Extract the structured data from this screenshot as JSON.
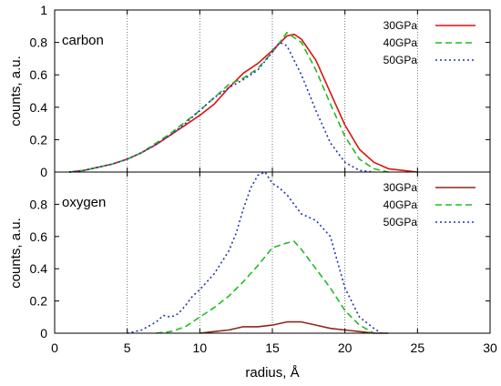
{
  "chart_data": [
    {
      "type": "line",
      "panel_label": "carbon",
      "xlabel": "",
      "ylabel": "counts, a.u.",
      "xlim": [
        0,
        30
      ],
      "ylim": [
        0,
        1
      ],
      "xticks": [
        0,
        5,
        10,
        15,
        20,
        25,
        30
      ],
      "xtick_labels": [
        "",
        "",
        "",
        "",
        "",
        "",
        ""
      ],
      "yticks": [
        0,
        0.2,
        0.4,
        0.6,
        0.8,
        1
      ],
      "ytick_labels": [
        "0",
        "0.2",
        "0.4",
        "0.6",
        "0.8",
        "1"
      ],
      "vertical_gridlines": [
        5,
        10,
        15,
        20,
        25
      ],
      "legend_position": "top-right",
      "series": [
        {
          "name": "30GPa",
          "color": "#dd1111",
          "dash": "solid",
          "x": [
            1,
            2,
            3,
            4,
            5,
            6,
            7,
            8,
            9,
            10,
            11,
            12,
            13,
            14,
            15,
            16,
            16.5,
            17,
            18,
            19,
            20,
            21,
            22,
            23,
            24,
            25
          ],
          "y": [
            0.0,
            0.01,
            0.03,
            0.05,
            0.08,
            0.12,
            0.17,
            0.23,
            0.29,
            0.35,
            0.42,
            0.52,
            0.61,
            0.67,
            0.75,
            0.84,
            0.85,
            0.82,
            0.69,
            0.49,
            0.29,
            0.14,
            0.06,
            0.02,
            0.01,
            0.0
          ]
        },
        {
          "name": "40GPa",
          "color": "#22bb22",
          "dash": "dashed",
          "x": [
            1,
            2,
            3,
            4,
            5,
            6,
            7,
            8,
            9,
            10,
            11,
            12,
            13,
            14,
            15,
            15.5,
            16,
            17,
            18,
            19,
            20,
            21,
            22,
            23
          ],
          "y": [
            0.0,
            0.01,
            0.03,
            0.05,
            0.08,
            0.12,
            0.18,
            0.24,
            0.31,
            0.38,
            0.46,
            0.54,
            0.58,
            0.64,
            0.74,
            0.8,
            0.86,
            0.8,
            0.63,
            0.42,
            0.22,
            0.08,
            0.02,
            0.0
          ]
        },
        {
          "name": "50GPa",
          "color": "#2233bb",
          "dash": "dotted",
          "x": [
            1,
            2,
            3,
            4,
            5,
            6,
            7,
            8,
            9,
            10,
            11,
            12,
            13,
            14,
            15,
            15.5,
            16,
            17,
            18,
            19,
            20,
            21,
            22
          ],
          "y": [
            0.0,
            0.01,
            0.03,
            0.05,
            0.08,
            0.12,
            0.17,
            0.23,
            0.3,
            0.38,
            0.46,
            0.52,
            0.57,
            0.63,
            0.74,
            0.8,
            0.78,
            0.6,
            0.38,
            0.18,
            0.06,
            0.01,
            0.0
          ]
        }
      ]
    },
    {
      "type": "line",
      "panel_label": "oxygen",
      "xlabel": "radius, Å",
      "ylabel": "counts, a.u.",
      "xlim": [
        0,
        30
      ],
      "ylim": [
        0,
        1
      ],
      "xticks": [
        0,
        5,
        10,
        15,
        20,
        25,
        30
      ],
      "xtick_labels": [
        "0",
        "5",
        "10",
        "15",
        "20",
        "25",
        "30"
      ],
      "yticks": [
        0,
        0.2,
        0.4,
        0.6,
        0.8
      ],
      "ytick_labels": [
        "0",
        "0.2",
        "0.4",
        "0.6",
        "0.8"
      ],
      "vertical_gridlines": [
        5,
        10,
        15,
        20,
        25
      ],
      "legend_position": "top-right",
      "series": [
        {
          "name": "30GPa",
          "color": "#8b2a1a",
          "dash": "solid",
          "x": [
            10,
            11,
            12,
            13,
            14,
            15,
            16,
            17,
            18,
            19,
            20,
            21,
            22,
            23
          ],
          "y": [
            0.0,
            0.01,
            0.02,
            0.04,
            0.04,
            0.05,
            0.07,
            0.07,
            0.05,
            0.03,
            0.02,
            0.01,
            0.0,
            0.0
          ]
        },
        {
          "name": "40GPa",
          "color": "#22bb22",
          "dash": "dashed",
          "x": [
            7,
            8,
            9,
            10,
            11,
            12,
            13,
            14,
            15,
            16,
            16.5,
            17,
            18,
            19,
            20,
            21,
            22
          ],
          "y": [
            0.0,
            0.01,
            0.04,
            0.1,
            0.16,
            0.23,
            0.32,
            0.42,
            0.53,
            0.56,
            0.57,
            0.52,
            0.4,
            0.28,
            0.14,
            0.05,
            0.0
          ]
        },
        {
          "name": "50GPa",
          "color": "#2233bb",
          "dash": "dotted",
          "x": [
            5,
            6,
            7,
            7.5,
            8,
            8.5,
            9,
            9.5,
            10,
            11,
            12,
            12.5,
            13,
            13.5,
            14,
            14.5,
            15,
            15.5,
            16,
            16.5,
            17,
            18,
            19,
            20,
            21,
            22,
            22.5
          ],
          "y": [
            0.0,
            0.02,
            0.07,
            0.11,
            0.1,
            0.12,
            0.17,
            0.23,
            0.27,
            0.37,
            0.51,
            0.62,
            0.77,
            0.9,
            0.98,
            1.0,
            0.93,
            0.9,
            0.86,
            0.8,
            0.74,
            0.7,
            0.6,
            0.28,
            0.1,
            0.03,
            0.0
          ]
        }
      ]
    }
  ]
}
